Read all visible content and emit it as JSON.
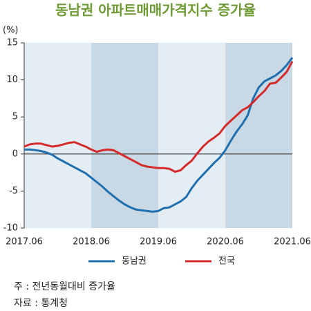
{
  "chart_data": {
    "type": "line",
    "title": "동남권 아파트매매가격지수 증가율",
    "y_label": "(%)",
    "categories": [
      "2017.06",
      null,
      null,
      null,
      null,
      null,
      null,
      null,
      null,
      null,
      null,
      null,
      "2018.06",
      null,
      null,
      null,
      null,
      null,
      null,
      null,
      null,
      null,
      null,
      null,
      "2019.06",
      null,
      null,
      null,
      null,
      null,
      null,
      null,
      null,
      null,
      null,
      null,
      "2020.06",
      null,
      null,
      null,
      null,
      null,
      null,
      null,
      null,
      null,
      null,
      null,
      "2021.06"
    ],
    "series": [
      {
        "name": "동남권",
        "color": "#1f6fae",
        "values": [
          0.6,
          0.6,
          0.5,
          0.4,
          0.2,
          -0.1,
          -0.6,
          -1.0,
          -1.4,
          -1.8,
          -2.2,
          -2.6,
          -3.2,
          -3.8,
          -4.4,
          -5.1,
          -5.7,
          -6.3,
          -6.8,
          -7.2,
          -7.5,
          -7.6,
          -7.7,
          -7.8,
          -7.7,
          -7.3,
          -7.2,
          -6.8,
          -6.4,
          -5.8,
          -4.6,
          -3.6,
          -2.8,
          -2.0,
          -1.2,
          -0.5,
          0.5,
          1.8,
          3.0,
          4.0,
          5.2,
          7.5,
          9.0,
          9.8,
          10.2,
          10.6,
          11.2,
          12.0,
          13.0
        ]
      },
      {
        "name": "전국",
        "color": "#d42a2a",
        "values": [
          1.0,
          1.3,
          1.4,
          1.4,
          1.2,
          1.0,
          1.1,
          1.3,
          1.5,
          1.6,
          1.3,
          1.0,
          0.6,
          0.3,
          0.5,
          0.6,
          0.5,
          0.1,
          -0.3,
          -0.7,
          -1.1,
          -1.5,
          -1.7,
          -1.8,
          -1.9,
          -1.9,
          -2.0,
          -2.4,
          -2.2,
          -1.5,
          -0.9,
          0.1,
          1.0,
          1.7,
          2.2,
          2.8,
          3.8,
          4.5,
          5.2,
          5.9,
          6.3,
          7.0,
          7.8,
          8.5,
          9.5,
          9.6,
          10.3,
          11.1,
          12.5
        ]
      }
    ],
    "ylim": [
      -10,
      15
    ],
    "yticks": [
      15,
      10,
      5,
      0,
      -5,
      -10
    ],
    "grid": false,
    "legend": "bottom",
    "notes": [
      "주 : 전년동월대비 증가율",
      "자료 : 통계청"
    ]
  }
}
